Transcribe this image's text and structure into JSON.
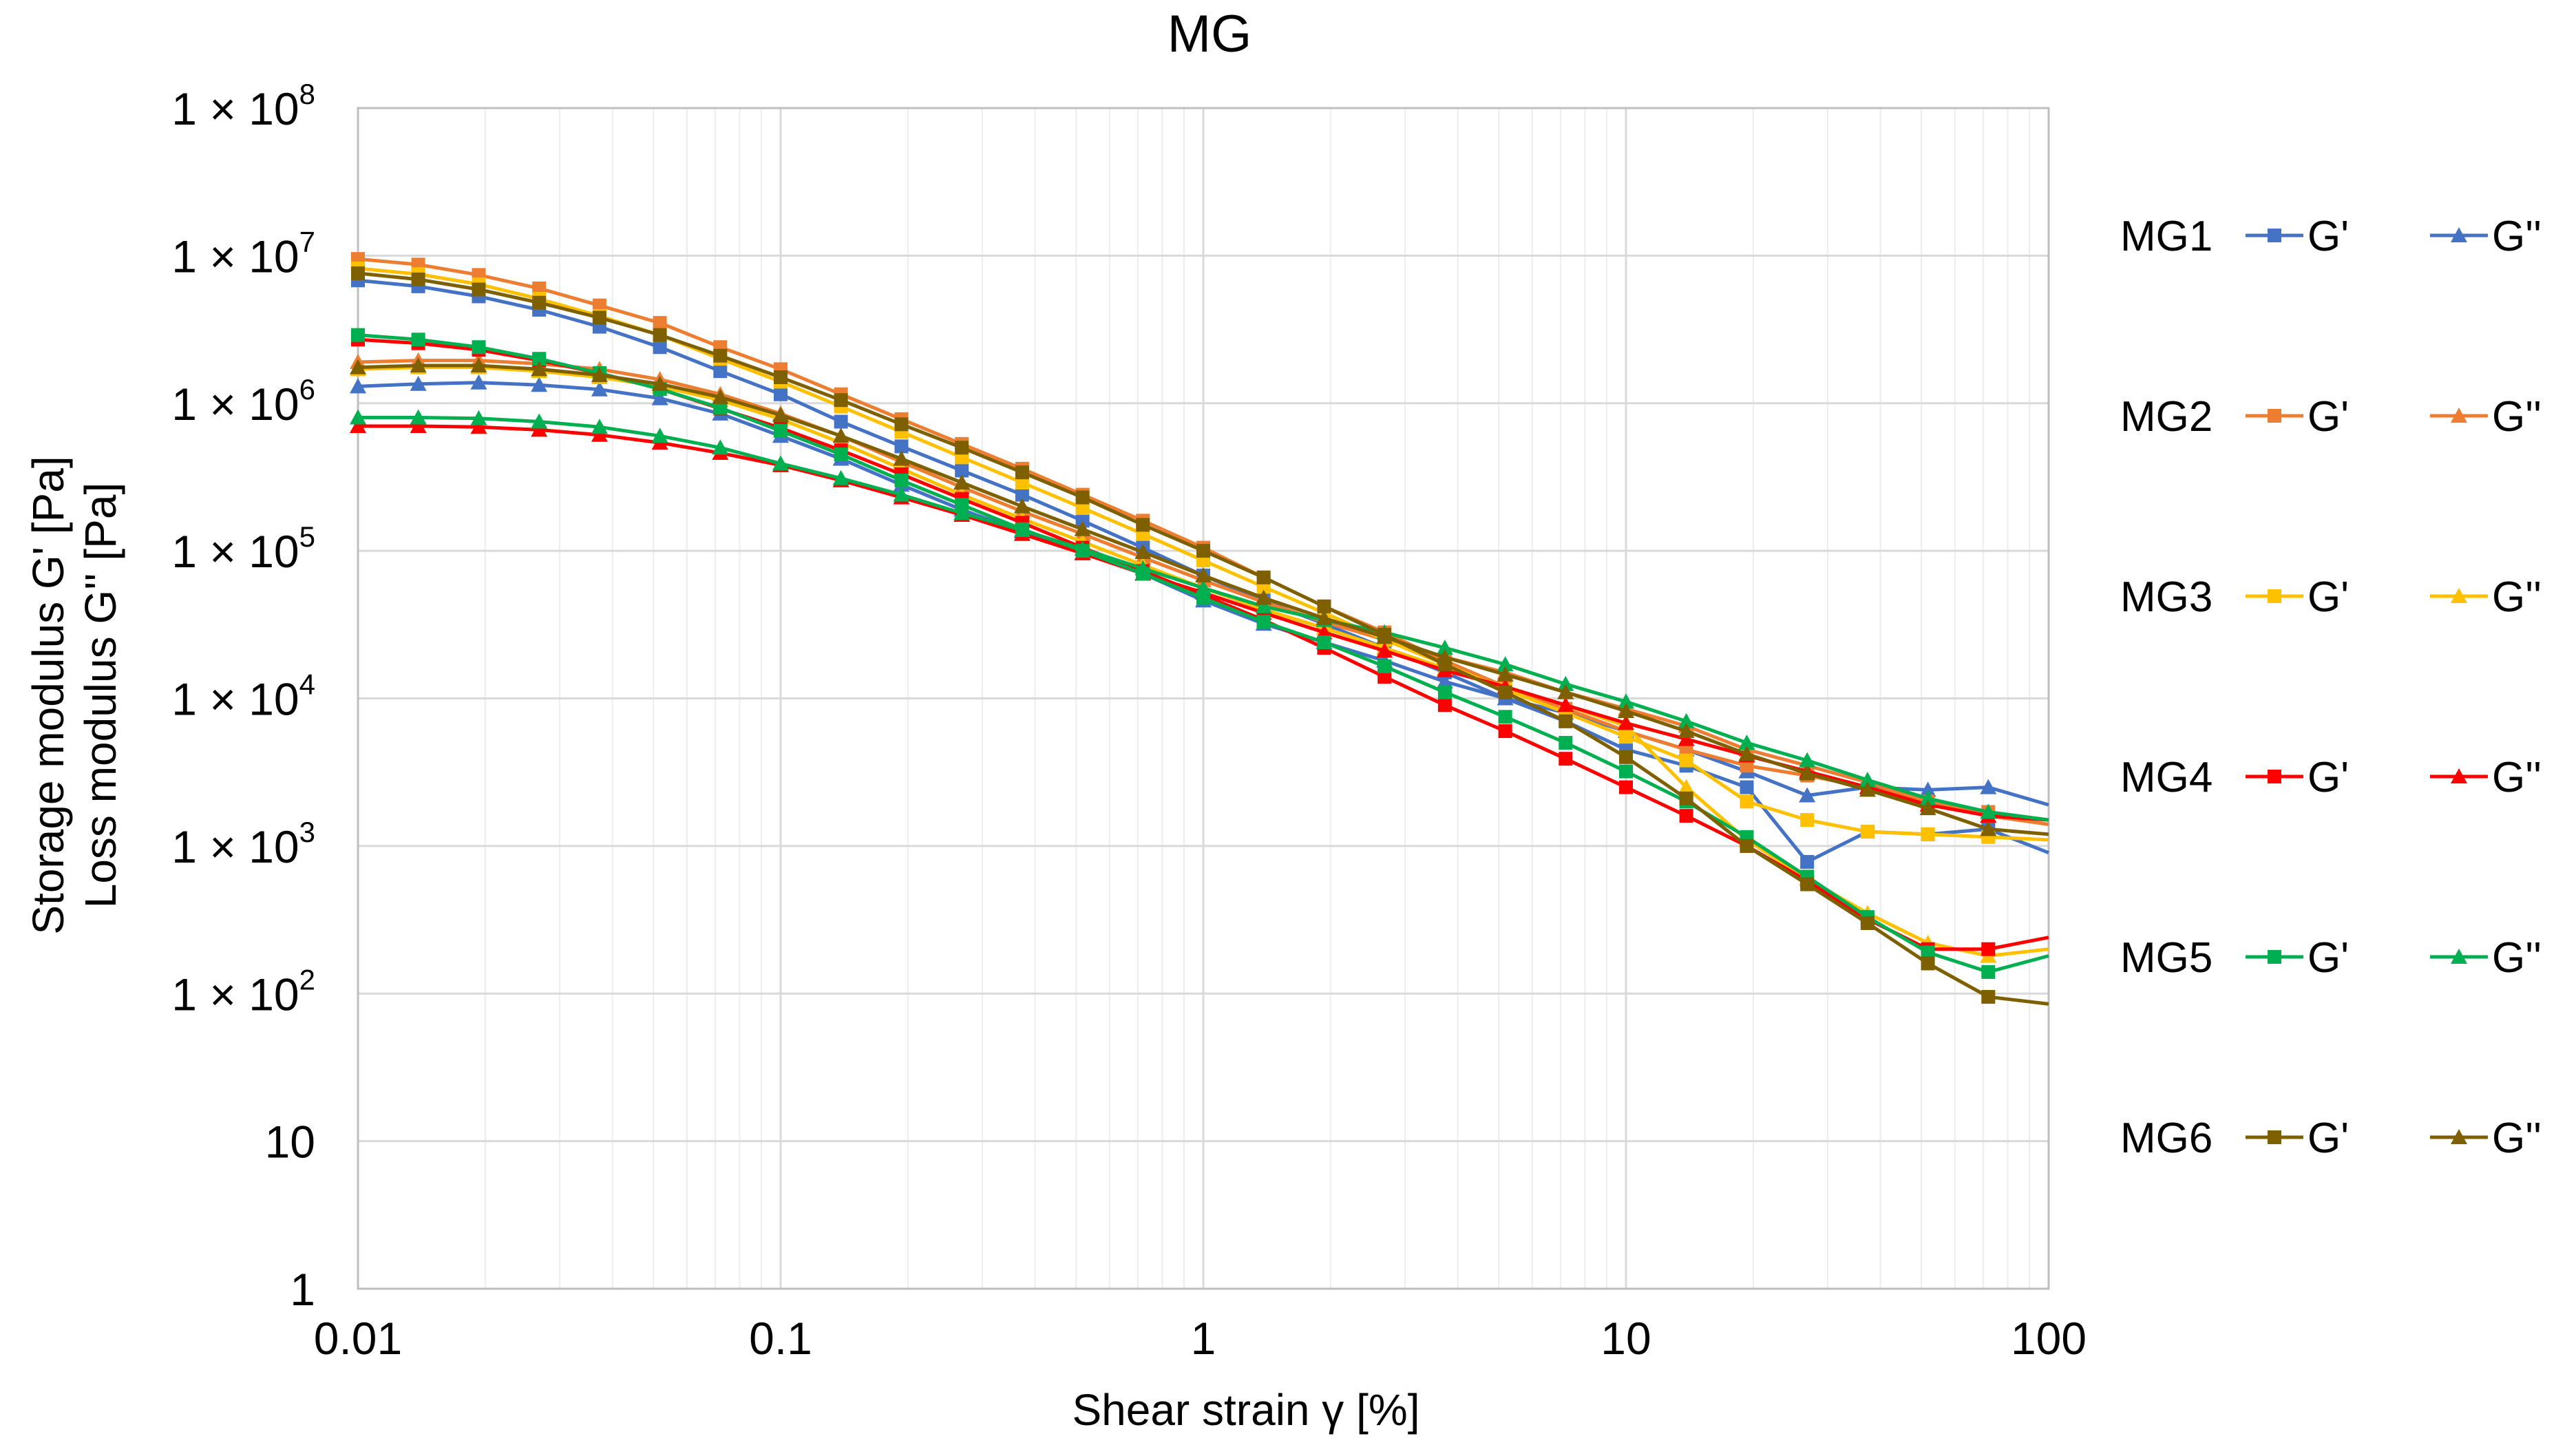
{
  "chart_data": {
    "type": "line",
    "title": "MG",
    "xlabel": "Shear strain  γ [%]",
    "ylabel_lines": [
      "Storage modulus G' [Pa]",
      "Loss modulus G'' [Pa]"
    ],
    "x_scale": "log",
    "y_scale": "log",
    "xlim": [
      0.01,
      100
    ],
    "ylim": [
      1,
      100000000
    ],
    "x_ticks": [
      {
        "value": 0.01,
        "label": "0.01"
      },
      {
        "value": 0.1,
        "label": "0.1"
      },
      {
        "value": 1,
        "label": "1"
      },
      {
        "value": 10,
        "label": "10"
      },
      {
        "value": 100,
        "label": "100"
      }
    ],
    "y_ticks": [
      {
        "value": 1,
        "label": "1",
        "mantissa": "",
        "exp": ""
      },
      {
        "value": 10,
        "label": "10",
        "mantissa": "",
        "exp": ""
      },
      {
        "value": 100,
        "label": "",
        "mantissa": "1 × 10",
        "exp": "2"
      },
      {
        "value": 1000,
        "label": "",
        "mantissa": "1 × 10",
        "exp": "3"
      },
      {
        "value": 10000,
        "label": "",
        "mantissa": "1 × 10",
        "exp": "4"
      },
      {
        "value": 100000,
        "label": "",
        "mantissa": "1 × 10",
        "exp": "5"
      },
      {
        "value": 1000000,
        "label": "",
        "mantissa": "1 × 10",
        "exp": "6"
      },
      {
        "value": 10000000,
        "label": "",
        "mantissa": "1 × 10",
        "exp": "7"
      },
      {
        "value": 100000000,
        "label": "",
        "mantissa": "1 × 10",
        "exp": "8"
      }
    ],
    "grid": true,
    "legend_position": "right",
    "x": [
      0.01,
      0.01389,
      0.01931,
      0.02683,
      0.03728,
      0.0518,
      0.07197,
      0.1,
      0.1389,
      0.1931,
      0.2683,
      0.3728,
      0.518,
      0.7197,
      1,
      1.389,
      1.931,
      2.683,
      3.728,
      5.18,
      7.197,
      10,
      13.89,
      19.31,
      26.83,
      37.28,
      51.8,
      71.97,
      100
    ],
    "series": [
      {
        "group": "MG1",
        "name": "G'",
        "color": "#4472c4",
        "marker": "square",
        "values": [
          6800000,
          6200000,
          5300000,
          4300000,
          3300000,
          2400000,
          1650000,
          1150000,
          750000,
          510000,
          350000,
          240000,
          160000,
          105000,
          68000,
          46000,
          32000,
          22000,
          15000,
          10000,
          7000,
          4500,
          3500,
          2500,
          780,
          1250,
          1200,
          1300,
          900
        ]
      },
      {
        "group": "MG1",
        "name": "G''",
        "color": "#4472c4",
        "marker": "triangle",
        "values": [
          1300000,
          1350000,
          1380000,
          1330000,
          1240000,
          1080000,
          850000,
          600000,
          420000,
          280000,
          190000,
          135000,
          97000,
          70000,
          46000,
          32000,
          24000,
          18000,
          13000,
          10000,
          8000,
          6000,
          4500,
          3200,
          2200,
          2500,
          2400,
          2500,
          1900
        ]
      },
      {
        "group": "MG2",
        "name": "G'",
        "color": "#ed7d31",
        "marker": "square",
        "values": [
          9500000,
          8700000,
          7400000,
          6000000,
          4600000,
          3500000,
          2400000,
          1700000,
          1150000,
          780000,
          530000,
          360000,
          240000,
          160000,
          105000,
          66000,
          42000,
          28000,
          18000,
          12000,
          8500,
          6000,
          4500,
          3500,
          3000,
          2500,
          2000,
          1700,
          1500
        ]
      },
      {
        "group": "MG2",
        "name": "G''",
        "color": "#ed7d31",
        "marker": "triangle",
        "values": [
          1900000,
          1950000,
          1950000,
          1850000,
          1700000,
          1450000,
          1150000,
          850000,
          600000,
          400000,
          270000,
          185000,
          130000,
          90000,
          63000,
          45000,
          33000,
          25000,
          19000,
          15000,
          11000,
          8500,
          6500,
          4500,
          3500,
          2700,
          2000,
          1600,
          1400
        ]
      },
      {
        "group": "MG3",
        "name": "G'",
        "color": "#ffc000",
        "marker": "square",
        "values": [
          8200000,
          7500000,
          6400000,
          5100000,
          3900000,
          2900000,
          2000000,
          1400000,
          950000,
          640000,
          430000,
          290000,
          195000,
          130000,
          86000,
          57000,
          38000,
          25000,
          17000,
          11500,
          8000,
          5500,
          3800,
          2000,
          1500,
          1250,
          1200,
          1150,
          1100
        ]
      },
      {
        "group": "MG3",
        "name": "G''",
        "color": "#ffc000",
        "marker": "triangle",
        "values": [
          1700000,
          1750000,
          1750000,
          1650000,
          1500000,
          1300000,
          1050000,
          780000,
          540000,
          360000,
          240000,
          165000,
          115000,
          80000,
          56000,
          40000,
          30000,
          22000,
          16000,
          12000,
          9000,
          6500,
          2500,
          1100,
          600,
          350,
          220,
          180,
          200
        ]
      },
      {
        "group": "MG4",
        "name": "G'",
        "color": "#ff0000",
        "marker": "square",
        "values": [
          2700000,
          2550000,
          2300000,
          1950000,
          1600000,
          1250000,
          920000,
          680000,
          480000,
          330000,
          225000,
          155000,
          105000,
          73000,
          50000,
          34000,
          22000,
          14000,
          9000,
          6000,
          3900,
          2500,
          1600,
          1000,
          580,
          320,
          200,
          200,
          240
        ]
      },
      {
        "group": "MG4",
        "name": "G''",
        "color": "#ff0000",
        "marker": "triangle",
        "values": [
          700000,
          700000,
          690000,
          660000,
          610000,
          540000,
          460000,
          380000,
          300000,
          230000,
          175000,
          130000,
          96000,
          70000,
          52000,
          38000,
          28000,
          21000,
          15500,
          12000,
          9000,
          6800,
          5300,
          4100,
          3200,
          2500,
          1900,
          1600,
          1500
        ]
      },
      {
        "group": "MG5",
        "name": "G'",
        "color": "#00b050",
        "marker": "square",
        "values": [
          2900000,
          2700000,
          2400000,
          2000000,
          1600000,
          1250000,
          930000,
          650000,
          450000,
          300000,
          205000,
          140000,
          100000,
          70000,
          48000,
          33000,
          24000,
          16500,
          11000,
          7500,
          5000,
          3200,
          2000,
          1150,
          620,
          330,
          190,
          140,
          180
        ]
      },
      {
        "group": "MG5",
        "name": "G''",
        "color": "#00b050",
        "marker": "triangle",
        "values": [
          800000,
          800000,
          790000,
          750000,
          690000,
          600000,
          500000,
          390000,
          310000,
          240000,
          180000,
          138000,
          103000,
          76000,
          56000,
          42000,
          34000,
          28000,
          22000,
          17000,
          12500,
          9500,
          7000,
          5000,
          3800,
          2800,
          2100,
          1700,
          1500
        ]
      },
      {
        "group": "MG6",
        "name": "G'",
        "color": "#7f6000",
        "marker": "square",
        "values": [
          7600000,
          6900000,
          5900000,
          4800000,
          3800000,
          2900000,
          2100000,
          1500000,
          1050000,
          720000,
          500000,
          340000,
          230000,
          150000,
          100000,
          66000,
          42000,
          27000,
          17000,
          11000,
          7000,
          4000,
          2100,
          1000,
          550,
          300,
          160,
          95,
          85
        ]
      },
      {
        "group": "MG6",
        "name": "G''",
        "color": "#7f6000",
        "marker": "triangle",
        "values": [
          1750000,
          1800000,
          1800000,
          1700000,
          1550000,
          1350000,
          1100000,
          830000,
          600000,
          420000,
          290000,
          200000,
          140000,
          98000,
          68000,
          48000,
          35000,
          26000,
          19000,
          14500,
          11000,
          8200,
          6000,
          4200,
          3100,
          2400,
          1800,
          1300,
          1200
        ]
      }
    ]
  }
}
